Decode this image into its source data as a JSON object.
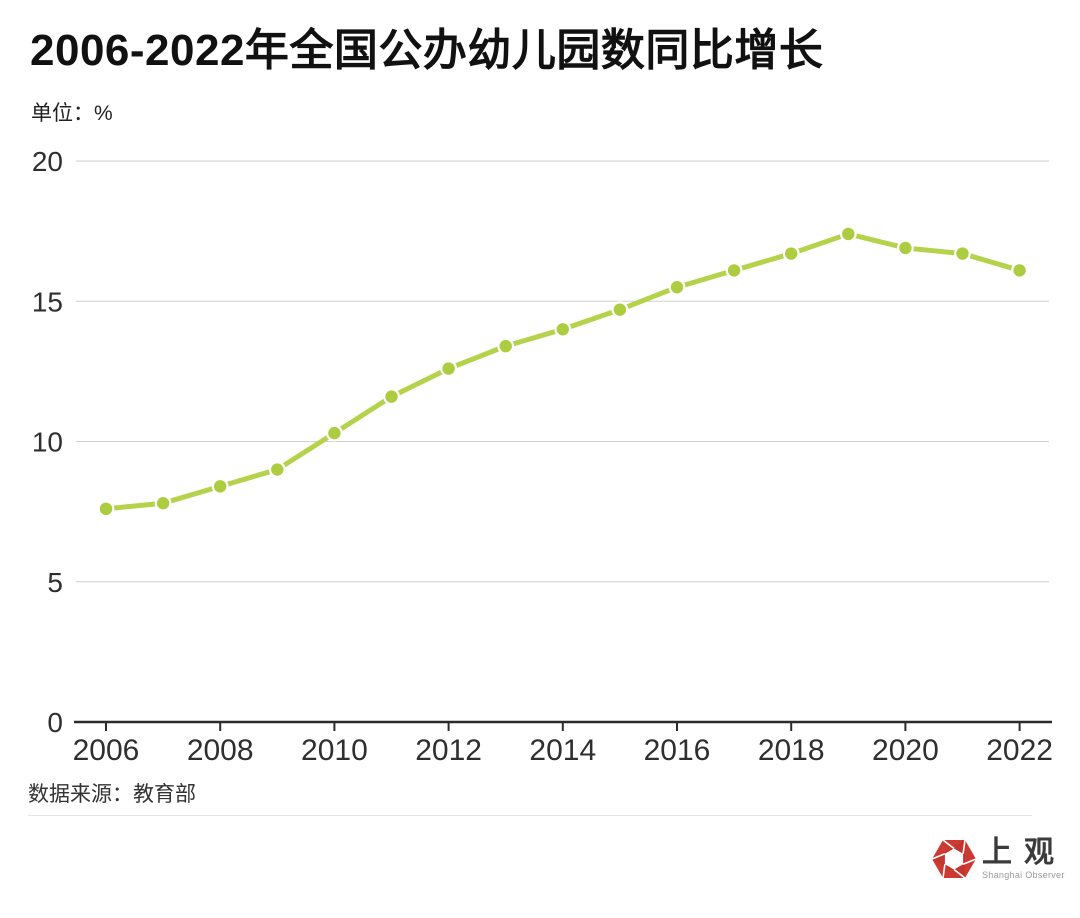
{
  "header": {
    "title": "2006-2022年全国公办幼儿园数同比增长",
    "unit_label": "单位：%"
  },
  "chart_data": {
    "type": "line",
    "title": "2006-2022年全国公办幼儿园数同比增长",
    "ylabel": "单位：%",
    "x": [
      2006,
      2007,
      2008,
      2009,
      2010,
      2011,
      2012,
      2013,
      2014,
      2015,
      2016,
      2017,
      2018,
      2019,
      2020,
      2021,
      2022
    ],
    "series": [
      {
        "name": "公办幼儿园数同比增长",
        "values": [
          7.6,
          7.8,
          8.4,
          9.0,
          10.3,
          11.6,
          12.6,
          13.4,
          14.0,
          14.7,
          15.5,
          16.1,
          16.7,
          17.4,
          16.9,
          16.7,
          16.1
        ]
      }
    ],
    "ylim": [
      0,
      20
    ],
    "yticks": [
      0,
      5,
      10,
      15,
      20
    ],
    "xticks": [
      2006,
      2008,
      2010,
      2012,
      2014,
      2016,
      2018,
      2020,
      2022
    ],
    "grid": "horizontal",
    "legend": "none",
    "line_color": "#b4d24a",
    "dot_color": "#adcc3f",
    "grid_color": "#cfcfcf",
    "axis_color": "#2b2b2b",
    "tick_label_color": "#2f2f2f"
  },
  "footer": {
    "source": "数据来源：教育部",
    "logo": {
      "name": "上观",
      "subtitle": "Shanghai Observer",
      "color": "#cd3a31"
    }
  }
}
